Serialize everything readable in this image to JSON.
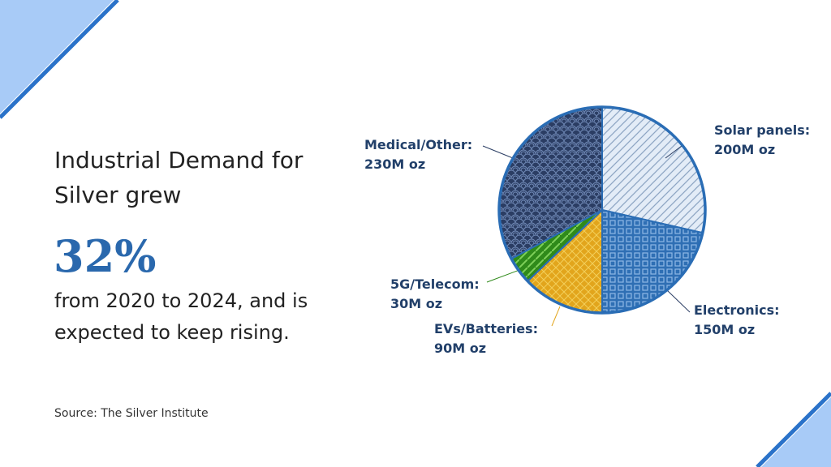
{
  "text": {
    "heading": "Industrial Demand for Silver grew",
    "highlight": "32%",
    "body": "from 2020 to 2024, and is expected to keep rising.",
    "source": "Source: The Silver Institute"
  },
  "chart_data": {
    "type": "pie",
    "categories": [
      "Solar panels:",
      "Electronics:",
      "EVs/Batteries:",
      "5G/Telecom:",
      "Medical/Other:"
    ],
    "values": [
      200,
      150,
      90,
      30,
      230
    ],
    "value_labels": [
      "200M oz",
      "150M oz",
      "90M oz",
      "30M oz",
      "230M oz"
    ],
    "colors": [
      "#e3ecf7",
      "#2f6fb4",
      "#e2a51c",
      "#2f8a1a",
      "#2b3d63"
    ]
  }
}
